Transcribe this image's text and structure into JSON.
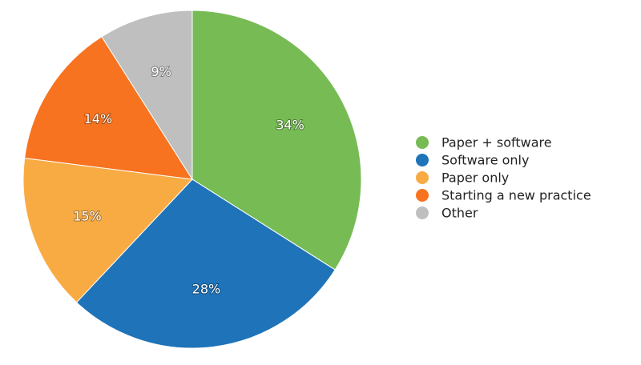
{
  "chart_data": {
    "type": "pie",
    "categories": [
      "Paper + software",
      "Software only",
      "Paper only",
      "Starting a new practice",
      "Other"
    ],
    "values": [
      34,
      28,
      15,
      14,
      9
    ],
    "value_labels": [
      "34%",
      "28%",
      "15%",
      "14%",
      "9%"
    ],
    "colors": [
      "#77bb55",
      "#1f73b9",
      "#f9ab43",
      "#f7731f",
      "#bfbfbf"
    ],
    "legend": "right"
  }
}
